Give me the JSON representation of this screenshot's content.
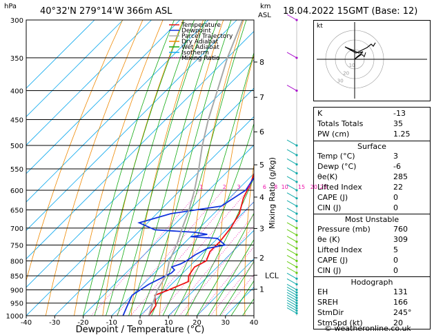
{
  "header": {
    "location": "40°32'N  279°14'W  366m  ASL",
    "datetime": "18.04.2022  15GMT  (Base: 12)",
    "hpa_unit": "hPa",
    "km_unit": "km",
    "asl_unit": "ASL"
  },
  "chart_data": {
    "type": "line",
    "title": "",
    "xlabel": "Dewpoint / Temperature (°C)",
    "ylabel": "hPa",
    "y_scale": "log",
    "y_direction": "inverted",
    "xlim": [
      -40,
      40
    ],
    "ylim": [
      1000,
      300
    ],
    "skew": "45 degrees",
    "x_ticks": [
      -40,
      -30,
      -20,
      -10,
      0,
      10,
      20,
      30,
      40
    ],
    "pressure_levels": [
      300,
      350,
      400,
      450,
      500,
      550,
      600,
      650,
      700,
      750,
      800,
      850,
      900,
      950,
      1000
    ],
    "height_km_ticks": [
      {
        "label": "1",
        "p": 898
      },
      {
        "label": "2",
        "p": 790
      },
      {
        "label": "3",
        "p": 701
      },
      {
        "label": "4",
        "p": 617
      },
      {
        "label": "5",
        "p": 541
      },
      {
        "label": "6",
        "p": 473
      },
      {
        "label": "7",
        "p": 411
      },
      {
        "label": "8",
        "p": 356
      },
      {
        "label": "LCL",
        "p": 848
      }
    ],
    "mixing_ratio_values": [
      "1",
      "2",
      "3",
      "4",
      "6",
      "8",
      "10",
      "15",
      "20",
      "25"
    ],
    "mixing_ratio_axis_label": "Mixing Ratio (g/kg)",
    "legend": [
      {
        "name": "Temperature",
        "color": "#ee1111"
      },
      {
        "name": "Dewpoint",
        "color": "#1133dd"
      },
      {
        "name": "Parcel Trajectory",
        "color": "#a8a8a8"
      },
      {
        "name": "Dry Adiabat",
        "color": "#ee8800"
      },
      {
        "name": "Wet Adiabat",
        "color": "#11aa11"
      },
      {
        "name": "Isotherm",
        "color": "#11aaee"
      },
      {
        "name": "Mixing Ratio",
        "color": "#ee11aa"
      }
    ],
    "series": [
      {
        "name": "Temperature",
        "points": [
          [
            3,
            1000
          ],
          [
            2,
            960
          ],
          [
            -2,
            920
          ],
          [
            1,
            900
          ],
          [
            5,
            870
          ],
          [
            3,
            850
          ],
          [
            2,
            820
          ],
          [
            4,
            800
          ],
          [
            2,
            770
          ],
          [
            2,
            740
          ],
          [
            1,
            700
          ],
          [
            -1,
            660
          ],
          [
            -5,
            620
          ],
          [
            -8,
            580
          ],
          [
            -11,
            550
          ],
          [
            -14,
            510
          ],
          [
            -16,
            470
          ],
          [
            -20,
            430
          ],
          [
            -25,
            390
          ],
          [
            -30,
            350
          ],
          [
            -37,
            310
          ],
          [
            -39,
            300
          ]
        ]
      },
      {
        "name": "Dewpoint",
        "points": [
          [
            -6,
            1000
          ],
          [
            -8,
            960
          ],
          [
            -10,
            920
          ],
          [
            -8,
            880
          ],
          [
            -6,
            860
          ],
          [
            -4,
            840
          ],
          [
            -4,
            830
          ],
          [
            -6,
            820
          ],
          [
            -4,
            810
          ],
          [
            -3,
            800
          ],
          [
            -2,
            780
          ],
          [
            0,
            760
          ],
          [
            5,
            750
          ],
          [
            0,
            730
          ],
          [
            -10,
            725
          ],
          [
            -5,
            718
          ],
          [
            -10,
            712
          ],
          [
            -25,
            705
          ],
          [
            -33,
            685
          ],
          [
            -25,
            660
          ],
          [
            -10,
            640
          ],
          [
            -7,
            600
          ],
          [
            -8,
            580
          ],
          [
            -9,
            560
          ],
          [
            -12,
            540
          ],
          [
            -16,
            500
          ],
          [
            -19,
            460
          ],
          [
            -25,
            400
          ],
          [
            -29,
            360
          ],
          [
            -30,
            355
          ],
          [
            -38,
            340
          ],
          [
            -40,
            320
          ],
          [
            -43,
            300
          ]
        ]
      },
      {
        "name": "Parcel Trajectory",
        "points": [
          [
            3,
            1000
          ],
          [
            -3,
            900
          ],
          [
            -5,
            848
          ],
          [
            -9,
            800
          ],
          [
            -12,
            750
          ],
          [
            -16,
            700
          ],
          [
            -20,
            650
          ],
          [
            -25,
            600
          ],
          [
            -31,
            550
          ],
          [
            -38,
            500
          ],
          [
            -45,
            450
          ],
          [
            -52,
            400
          ],
          [
            -60,
            350
          ],
          [
            -68,
            300
          ]
        ]
      }
    ],
    "wind_barbs_p": [
      990,
      980,
      970,
      960,
      950,
      940,
      930,
      920,
      910,
      900,
      880,
      860,
      840,
      820,
      800,
      780,
      760,
      740,
      720,
      700,
      680,
      660,
      640,
      620,
      600,
      580,
      560,
      540,
      520,
      500,
      400,
      350,
      300
    ]
  },
  "indices": {
    "basic": [
      {
        "label": "K",
        "value": "-13"
      },
      {
        "label": "Totals Totals",
        "value": "35"
      },
      {
        "label": "PW (cm)",
        "value": "1.25"
      }
    ],
    "surface": {
      "title": "Surface",
      "rows": [
        {
          "label": "Temp (°C)",
          "value": "3"
        },
        {
          "label": "Dewp (°C)",
          "value": "-6"
        },
        {
          "label": "θe(K)",
          "value": "285"
        },
        {
          "label": "Lifted Index",
          "value": "22"
        },
        {
          "label": "CAPE (J)",
          "value": "0"
        },
        {
          "label": "CIN (J)",
          "value": "0"
        }
      ]
    },
    "most_unstable": {
      "title": "Most Unstable",
      "rows": [
        {
          "label": "Pressure (mb)",
          "value": "760"
        },
        {
          "label": "θe (K)",
          "value": "309"
        },
        {
          "label": "Lifted Index",
          "value": "5"
        },
        {
          "label": "CAPE (J)",
          "value": "0"
        },
        {
          "label": "CIN (J)",
          "value": "0"
        }
      ]
    },
    "hodograph": {
      "title": "Hodograph",
      "rows": [
        {
          "label": "EH",
          "value": "131"
        },
        {
          "label": "SREH",
          "value": "166"
        },
        {
          "label": "StmDir",
          "value": "245°"
        },
        {
          "label": "StmSpd (kt)",
          "value": "20"
        }
      ]
    }
  },
  "hodograph_plot": {
    "unit_label": "kt",
    "ring_labels": [
      "10",
      "20",
      "30"
    ]
  },
  "footer": {
    "copyright": "© weatheronline.co.uk"
  }
}
